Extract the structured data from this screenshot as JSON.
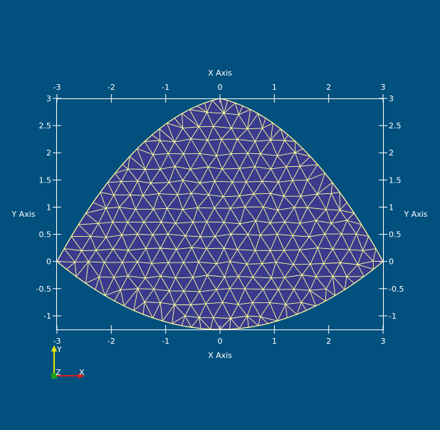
{
  "axes": {
    "x_title": "X Axis",
    "y_title": "Y Axis",
    "x_ticks": [
      "-3",
      "-2",
      "-1",
      "0",
      "1",
      "2",
      "3"
    ],
    "y_ticks": [
      "3",
      "2.5",
      "2",
      "1.5",
      "1",
      "0.5",
      "0",
      "-0.5",
      "-1"
    ],
    "x_range": [
      -3,
      3
    ],
    "y_range": [
      -1.25,
      3
    ]
  },
  "orientation": {
    "y_label": "Y",
    "z_label": "Z",
    "x_label": "X"
  },
  "colors": {
    "background": "#02507e",
    "mesh_fill": "#3a3b8c",
    "mesh_edges": "#ffff9e",
    "axes_grid": "#ffffff",
    "axis_x": "#d62020",
    "axis_y": "#e6e600",
    "axis_z": "#1aa01a"
  },
  "mesh": {
    "shape": "curved triangular domain",
    "element_type": "triangle"
  }
}
